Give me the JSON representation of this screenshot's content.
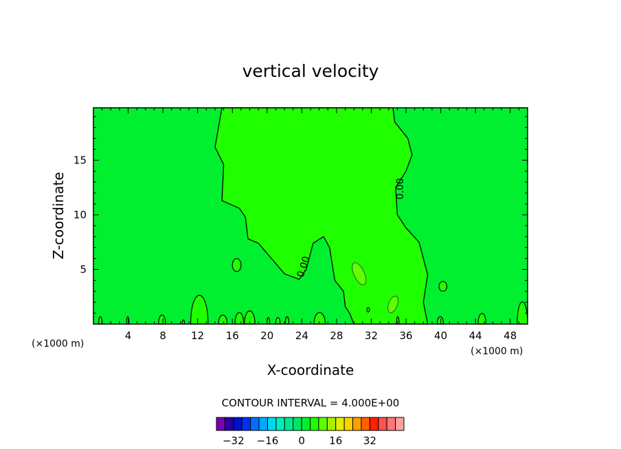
{
  "chart_data": {
    "type": "heatmap",
    "title": "vertical velocity",
    "xlabel": "X-coordinate",
    "ylabel": "Z-coordinate",
    "x_units_left": "(×1000 m)",
    "x_units_right": "(×1000 m)",
    "xlim": [
      0,
      50
    ],
    "ylim": [
      0,
      19.8
    ],
    "x_ticks": [
      4,
      8,
      12,
      16,
      20,
      24,
      28,
      32,
      36,
      40,
      44,
      48
    ],
    "y_ticks": [
      5,
      10,
      15
    ],
    "contour_label": "0.00",
    "contour_interval_text": "CONTOUR INTERVAL = 4.000E+00",
    "colorbar": {
      "colors": [
        "#7a00b0",
        "#2a00a0",
        "#0010c8",
        "#0030f0",
        "#0070ff",
        "#00a8ff",
        "#00d8f0",
        "#00f0c0",
        "#00e890",
        "#00e860",
        "#00f030",
        "#20ff00",
        "#60ff00",
        "#a8f000",
        "#e0f000",
        "#ffd000",
        "#ffa000",
        "#ff6000",
        "#ff2000",
        "#ff5050",
        "#ff7878",
        "#ffa0a0"
      ],
      "tick_values": [
        -32,
        -16,
        0,
        16,
        32
      ],
      "range": [
        -40,
        48
      ]
    },
    "field_colors": {
      "background": "#00f030",
      "positive": "#20ff00",
      "local_max": "#60ff00"
    }
  }
}
